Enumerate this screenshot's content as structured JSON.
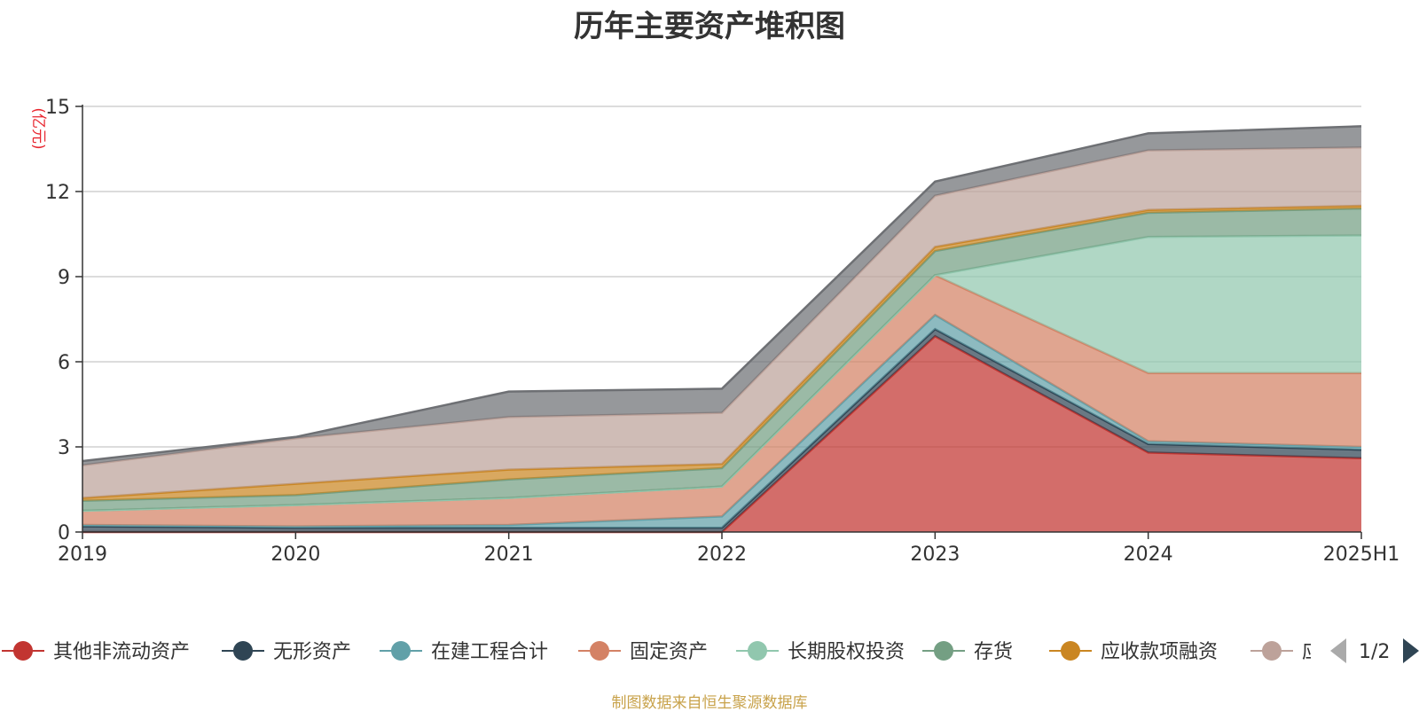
{
  "title": "历年主要资产堆积图",
  "source": "制图数据来自恒生聚源数据库",
  "legend_page": "1/2",
  "legend_clip_text": "应",
  "chart_data": {
    "type": "area",
    "stacked": true,
    "title": "历年主要资产堆积图",
    "ylabel": "(亿元)",
    "xlabel": "",
    "categories": [
      "2019",
      "2020",
      "2021",
      "2022",
      "2023",
      "2024",
      "2025H1"
    ],
    "ylim": [
      0,
      15
    ],
    "yticks": [
      0,
      3,
      6,
      9,
      12,
      15
    ],
    "grid": true,
    "legend_position": "bottom",
    "series": [
      {
        "name": "其他非流动资产",
        "color": "#c23531",
        "values": [
          0.0,
          0.0,
          0.0,
          0.0,
          6.9,
          2.8,
          2.6
        ]
      },
      {
        "name": "无形资产",
        "color": "#2f4554",
        "values": [
          0.2,
          0.15,
          0.15,
          0.15,
          0.25,
          0.3,
          0.3
        ]
      },
      {
        "name": "在建工程合计",
        "color": "#61a0a8",
        "values": [
          0.05,
          0.05,
          0.1,
          0.4,
          0.5,
          0.1,
          0.1
        ]
      },
      {
        "name": "固定资产",
        "color": "#d48265",
        "values": [
          0.5,
          0.75,
          0.95,
          1.05,
          1.4,
          2.4,
          2.6
        ]
      },
      {
        "name": "长期股权投资",
        "color": "#91c7ae",
        "values": [
          0.0,
          0.0,
          0.0,
          0.0,
          0.0,
          4.8,
          4.85
        ]
      },
      {
        "name": "存货",
        "color": "#749f83",
        "values": [
          0.35,
          0.35,
          0.65,
          0.65,
          0.85,
          0.85,
          0.95
        ]
      },
      {
        "name": "应收款项融资",
        "color": "#ca8622",
        "values": [
          0.1,
          0.4,
          0.35,
          0.15,
          0.15,
          0.1,
          0.1
        ]
      },
      {
        "name": "应",
        "color": "#bda29a",
        "values": [
          1.15,
          1.6,
          1.85,
          1.8,
          1.8,
          2.1,
          2.05
        ]
      },
      {
        "name": "",
        "color": "#6e7074",
        "values": [
          0.15,
          0.05,
          0.9,
          0.85,
          0.5,
          0.6,
          0.75
        ]
      }
    ]
  }
}
